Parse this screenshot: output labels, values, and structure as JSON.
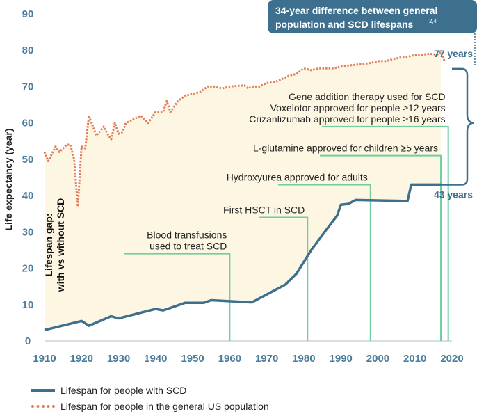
{
  "chart_data": {
    "type": "line",
    "ylabel": "Life expectancy (year)",
    "xlim": [
      1910,
      2020
    ],
    "ylim": [
      0,
      90
    ],
    "x_ticks": [
      1910,
      1920,
      1930,
      1940,
      1950,
      1960,
      1970,
      1980,
      1990,
      2000,
      2010,
      2020
    ],
    "y_ticks": [
      0,
      10,
      20,
      30,
      40,
      50,
      60,
      70,
      80,
      90
    ],
    "series": [
      {
        "name": "Lifespan for people with SCD",
        "color": "#3d6f8e",
        "style": "solid",
        "points": [
          [
            1910,
            3
          ],
          [
            1920,
            5.5
          ],
          [
            1922,
            4.2
          ],
          [
            1928,
            6.8
          ],
          [
            1930,
            6.2
          ],
          [
            1940,
            8.8
          ],
          [
            1942,
            8.4
          ],
          [
            1948,
            10.5
          ],
          [
            1953,
            10.5
          ],
          [
            1955,
            11.2
          ],
          [
            1966,
            10.6
          ],
          [
            1975,
            15.5
          ],
          [
            1978,
            18.5
          ],
          [
            1982,
            25
          ],
          [
            1986,
            30.5
          ],
          [
            1989,
            34.5
          ],
          [
            1990,
            37.5
          ],
          [
            1992,
            37.7
          ],
          [
            1994,
            38.8
          ],
          [
            2008,
            38.5
          ],
          [
            2009,
            43
          ],
          [
            2017,
            43
          ]
        ]
      },
      {
        "name": "Lifespan for people in the general US population",
        "color": "#e0805a",
        "style": "dotted",
        "points": [
          [
            1910,
            52
          ],
          [
            1911,
            49.5
          ],
          [
            1913,
            53.5
          ],
          [
            1914,
            52
          ],
          [
            1916,
            54
          ],
          [
            1917,
            54
          ],
          [
            1918,
            50
          ],
          [
            1919,
            37
          ],
          [
            1920,
            53.5
          ],
          [
            1921,
            53
          ],
          [
            1922,
            62
          ],
          [
            1924,
            56.5
          ],
          [
            1926,
            59
          ],
          [
            1927,
            57
          ],
          [
            1928,
            55.5
          ],
          [
            1929,
            60
          ],
          [
            1930,
            57
          ],
          [
            1931,
            57.5
          ],
          [
            1932,
            60
          ],
          [
            1934,
            61
          ],
          [
            1936,
            62
          ],
          [
            1937,
            61
          ],
          [
            1938,
            60
          ],
          [
            1940,
            63
          ],
          [
            1942,
            63
          ],
          [
            1943,
            66
          ],
          [
            1944,
            63
          ],
          [
            1946,
            66
          ],
          [
            1948,
            67.5
          ],
          [
            1950,
            68
          ],
          [
            1952,
            68.5
          ],
          [
            1954,
            70
          ],
          [
            1956,
            70
          ],
          [
            1958,
            69.5
          ],
          [
            1960,
            70
          ],
          [
            1962,
            70.2
          ],
          [
            1964,
            70.3
          ],
          [
            1965,
            69.5
          ],
          [
            1966,
            70
          ],
          [
            1968,
            70
          ],
          [
            1970,
            71
          ],
          [
            1972,
            71.2
          ],
          [
            1974,
            72
          ],
          [
            1976,
            73
          ],
          [
            1978,
            73.5
          ],
          [
            1980,
            75
          ],
          [
            1982,
            74.5
          ],
          [
            1984,
            75
          ],
          [
            1986,
            75
          ],
          [
            1988,
            75
          ],
          [
            1990,
            75.5
          ],
          [
            1992,
            75.8
          ],
          [
            1994,
            76
          ],
          [
            1996,
            76.2
          ],
          [
            1998,
            76.5
          ],
          [
            2000,
            77
          ],
          [
            2002,
            77
          ],
          [
            2004,
            77.5
          ],
          [
            2006,
            78
          ],
          [
            2008,
            78.2
          ],
          [
            2010,
            78.7
          ],
          [
            2012,
            78.8
          ],
          [
            2014,
            79
          ],
          [
            2016,
            78.8
          ],
          [
            2017,
            79.5
          ],
          [
            2018,
            77
          ]
        ]
      }
    ],
    "annotations": [
      {
        "year": 1960,
        "y": 24,
        "text_lines": [
          "Blood transfusions",
          "used to treat SCD"
        ]
      },
      {
        "year": 1981,
        "y": 34,
        "text_lines": [
          "First HSCT in SCD"
        ]
      },
      {
        "year": 1998,
        "y": 43,
        "text_lines": [
          "Hydroxyurea approved for adults"
        ]
      },
      {
        "year": 2017,
        "y": 51,
        "text_lines": [
          "L-glutamine approved for children ≥5 years"
        ]
      },
      {
        "year": 2019,
        "y": 59,
        "text_lines": [
          "Gene addition therapy used for SCD",
          "Voxelotor approved for people ≥12 years",
          "Crizanlizumab approved for people ≥16 years"
        ]
      }
    ],
    "gap_label_lines": [
      "Lifespan gap:",
      "with vs without SCD"
    ],
    "callout": {
      "text_lines": [
        "34-year difference between general",
        "population and SCD lifespans"
      ],
      "superscript": "2,4"
    },
    "end_labels": [
      {
        "text": "77 years",
        "y": 77
      },
      {
        "text": "43 years",
        "y": 43
      }
    ]
  },
  "legend": [
    {
      "label": "Lifespan for people with SCD",
      "style": "solid"
    },
    {
      "label": "Lifespan for people in the general US population",
      "style": "dotted"
    }
  ]
}
